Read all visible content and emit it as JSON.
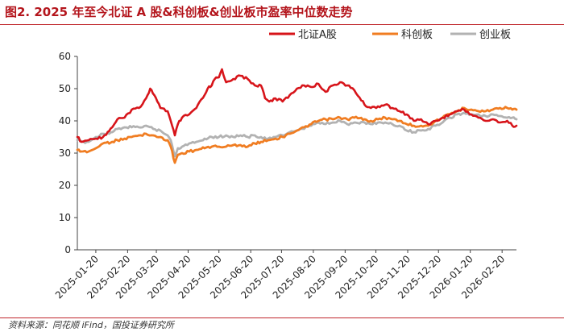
{
  "figure": {
    "title": "图2. 2025 年至今北证 A 股&科创板&创业板市盈率中位数走势",
    "source": "资料来源：同花顺 iFind，国投证券研究所"
  },
  "chart_data": {
    "type": "line",
    "x_ticks": [
      "2025-01-20",
      "2025-02-20",
      "2025-03-20",
      "2025-04-20",
      "2025-05-20",
      "2025-06-20",
      "2025-07-20",
      "2025-08-20",
      "2025-09-20",
      "2025-10-20",
      "2025-11-20",
      "2025-12-20",
      "2026-01-20",
      "2026-02-20"
    ],
    "x_range": [
      "2025-01-02",
      "2026-03-06"
    ],
    "ylim": [
      0,
      60
    ],
    "yticks": [
      0,
      10,
      20,
      30,
      40,
      50,
      60
    ],
    "legend_position": "top-right",
    "grid": false,
    "series": [
      {
        "name": "北证A股",
        "color": "#d7141a",
        "points": [
          [
            "2025-01-02",
            35
          ],
          [
            "2025-01-06",
            33.5
          ],
          [
            "2025-01-13",
            34
          ],
          [
            "2025-01-20",
            34.5
          ],
          [
            "2025-01-27",
            35
          ],
          [
            "2025-02-05",
            38
          ],
          [
            "2025-02-10",
            40.5
          ],
          [
            "2025-02-17",
            41
          ],
          [
            "2025-02-24",
            43.5
          ],
          [
            "2025-03-03",
            44
          ],
          [
            "2025-03-10",
            47
          ],
          [
            "2025-03-14",
            50
          ],
          [
            "2025-03-18",
            48
          ],
          [
            "2025-03-24",
            44
          ],
          [
            "2025-03-31",
            43
          ],
          [
            "2025-04-03",
            40
          ],
          [
            "2025-04-07",
            35.5
          ],
          [
            "2025-04-10",
            39
          ],
          [
            "2025-04-14",
            41
          ],
          [
            "2025-04-21",
            42
          ],
          [
            "2025-04-28",
            44
          ],
          [
            "2025-05-06",
            48
          ],
          [
            "2025-05-09",
            50
          ],
          [
            "2025-05-13",
            51
          ],
          [
            "2025-05-16",
            53
          ],
          [
            "2025-05-20",
            53.5
          ],
          [
            "2025-05-23",
            56
          ],
          [
            "2025-05-27",
            52
          ],
          [
            "2025-06-03",
            53
          ],
          [
            "2025-06-10",
            54
          ],
          [
            "2025-06-17",
            53
          ],
          [
            "2025-06-24",
            51
          ],
          [
            "2025-06-30",
            51
          ],
          [
            "2025-07-04",
            47
          ],
          [
            "2025-07-08",
            46
          ],
          [
            "2025-07-14",
            47
          ],
          [
            "2025-07-21",
            46
          ],
          [
            "2025-07-28",
            48
          ],
          [
            "2025-08-04",
            50
          ],
          [
            "2025-08-11",
            51
          ],
          [
            "2025-08-18",
            50.5
          ],
          [
            "2025-08-25",
            51.5
          ],
          [
            "2025-09-01",
            49
          ],
          [
            "2025-09-08",
            51
          ],
          [
            "2025-09-15",
            52
          ],
          [
            "2025-09-22",
            51
          ],
          [
            "2025-09-29",
            49.5
          ],
          [
            "2025-10-09",
            45
          ],
          [
            "2025-10-15",
            44
          ],
          [
            "2025-10-22",
            44.5
          ],
          [
            "2025-10-29",
            45
          ],
          [
            "2025-11-05",
            44
          ],
          [
            "2025-11-12",
            43
          ],
          [
            "2025-11-19",
            42
          ],
          [
            "2025-11-26",
            40
          ],
          [
            "2025-12-03",
            40.5
          ],
          [
            "2025-12-10",
            39
          ],
          [
            "2025-12-17",
            40
          ],
          [
            "2025-12-24",
            41
          ],
          [
            "2025-12-31",
            42
          ],
          [
            "2026-01-07",
            43
          ],
          [
            "2026-01-14",
            43.5
          ],
          [
            "2026-01-21",
            42
          ],
          [
            "2026-01-28",
            41
          ],
          [
            "2026-02-04",
            40
          ],
          [
            "2026-02-11",
            40.5
          ],
          [
            "2026-02-18",
            39.5
          ],
          [
            "2026-02-25",
            40
          ],
          [
            "2026-03-02",
            38.5
          ],
          [
            "2026-03-06",
            38.5
          ]
        ]
      },
      {
        "name": "科创板",
        "color": "#f07d22",
        "points": [
          [
            "2025-01-02",
            31
          ],
          [
            "2025-01-06",
            30.5
          ],
          [
            "2025-01-13",
            30.5
          ],
          [
            "2025-01-20",
            31.5
          ],
          [
            "2025-01-27",
            33
          ],
          [
            "2025-02-05",
            33.5
          ],
          [
            "2025-02-10",
            34
          ],
          [
            "2025-02-17",
            34.5
          ],
          [
            "2025-02-24",
            35
          ],
          [
            "2025-03-03",
            35.5
          ],
          [
            "2025-03-10",
            36
          ],
          [
            "2025-03-17",
            35.5
          ],
          [
            "2025-03-24",
            35
          ],
          [
            "2025-03-31",
            34
          ],
          [
            "2025-04-03",
            32
          ],
          [
            "2025-04-07",
            27
          ],
          [
            "2025-04-10",
            29.5
          ],
          [
            "2025-04-14",
            30
          ],
          [
            "2025-04-21",
            30.5
          ],
          [
            "2025-04-28",
            31
          ],
          [
            "2025-05-06",
            31.5
          ],
          [
            "2025-05-13",
            32
          ],
          [
            "2025-05-20",
            32
          ],
          [
            "2025-05-27",
            32
          ],
          [
            "2025-06-03",
            32.5
          ],
          [
            "2025-06-10",
            32.5
          ],
          [
            "2025-06-17",
            32
          ],
          [
            "2025-06-24",
            33
          ],
          [
            "2025-06-30",
            33.5
          ],
          [
            "2025-07-07",
            34
          ],
          [
            "2025-07-14",
            34.5
          ],
          [
            "2025-07-21",
            35
          ],
          [
            "2025-07-28",
            36
          ],
          [
            "2025-08-04",
            37
          ],
          [
            "2025-08-11",
            38
          ],
          [
            "2025-08-18",
            39
          ],
          [
            "2025-08-25",
            40
          ],
          [
            "2025-09-01",
            40.5
          ],
          [
            "2025-09-08",
            40.5
          ],
          [
            "2025-09-15",
            41
          ],
          [
            "2025-09-22",
            40.5
          ],
          [
            "2025-09-29",
            41
          ],
          [
            "2025-10-09",
            40.5
          ],
          [
            "2025-10-15",
            40
          ],
          [
            "2025-10-22",
            40.5
          ],
          [
            "2025-10-29",
            41
          ],
          [
            "2025-11-05",
            40.5
          ],
          [
            "2025-11-12",
            40
          ],
          [
            "2025-11-19",
            39
          ],
          [
            "2025-11-26",
            38.5
          ],
          [
            "2025-12-03",
            38.5
          ],
          [
            "2025-12-10",
            38.5
          ],
          [
            "2025-12-17",
            40
          ],
          [
            "2025-12-24",
            41
          ],
          [
            "2025-12-31",
            42
          ],
          [
            "2026-01-07",
            43
          ],
          [
            "2026-01-14",
            44
          ],
          [
            "2026-01-21",
            43.5
          ],
          [
            "2026-01-28",
            43
          ],
          [
            "2026-02-04",
            43
          ],
          [
            "2026-02-11",
            43.5
          ],
          [
            "2026-02-18",
            44
          ],
          [
            "2026-02-25",
            44
          ],
          [
            "2026-03-02",
            43.5
          ],
          [
            "2026-03-06",
            43.5
          ]
        ]
      },
      {
        "name": "创业板",
        "color": "#b2b2b2",
        "points": [
          [
            "2025-01-02",
            34
          ],
          [
            "2025-01-06",
            33.5
          ],
          [
            "2025-01-13",
            33.5
          ],
          [
            "2025-01-20",
            35
          ],
          [
            "2025-01-27",
            36
          ],
          [
            "2025-02-05",
            36.5
          ],
          [
            "2025-02-10",
            37.5
          ],
          [
            "2025-02-17",
            38
          ],
          [
            "2025-02-24",
            38
          ],
          [
            "2025-03-03",
            38
          ],
          [
            "2025-03-10",
            38.5
          ],
          [
            "2025-03-17",
            37.5
          ],
          [
            "2025-03-24",
            37
          ],
          [
            "2025-03-31",
            35.5
          ],
          [
            "2025-04-03",
            34
          ],
          [
            "2025-04-07",
            29
          ],
          [
            "2025-04-10",
            31.5
          ],
          [
            "2025-04-14",
            32
          ],
          [
            "2025-04-21",
            33
          ],
          [
            "2025-04-28",
            33.5
          ],
          [
            "2025-05-06",
            34.5
          ],
          [
            "2025-05-13",
            35
          ],
          [
            "2025-05-20",
            35
          ],
          [
            "2025-05-27",
            35.5
          ],
          [
            "2025-06-03",
            35
          ],
          [
            "2025-06-10",
            35.5
          ],
          [
            "2025-06-17",
            35
          ],
          [
            "2025-06-24",
            35.5
          ],
          [
            "2025-06-30",
            35
          ],
          [
            "2025-07-07",
            34.5
          ],
          [
            "2025-07-14",
            35
          ],
          [
            "2025-07-21",
            35.5
          ],
          [
            "2025-07-28",
            36.5
          ],
          [
            "2025-08-04",
            37
          ],
          [
            "2025-08-11",
            37.5
          ],
          [
            "2025-08-18",
            38.5
          ],
          [
            "2025-08-25",
            39.5
          ],
          [
            "2025-09-01",
            39
          ],
          [
            "2025-09-08",
            39.5
          ],
          [
            "2025-09-15",
            40
          ],
          [
            "2025-09-22",
            39
          ],
          [
            "2025-09-29",
            39.5
          ],
          [
            "2025-10-09",
            39.5
          ],
          [
            "2025-10-15",
            39
          ],
          [
            "2025-10-22",
            39.5
          ],
          [
            "2025-10-29",
            39.5
          ],
          [
            "2025-11-05",
            39
          ],
          [
            "2025-11-12",
            38.5
          ],
          [
            "2025-11-19",
            37
          ],
          [
            "2025-11-26",
            36.5
          ],
          [
            "2025-12-03",
            37
          ],
          [
            "2025-12-10",
            37.5
          ],
          [
            "2025-12-17",
            38.5
          ],
          [
            "2025-12-24",
            39.5
          ],
          [
            "2025-12-31",
            41
          ],
          [
            "2026-01-07",
            42
          ],
          [
            "2026-01-14",
            42.5
          ],
          [
            "2026-01-21",
            42
          ],
          [
            "2026-01-28",
            42
          ],
          [
            "2026-02-04",
            41.5
          ],
          [
            "2026-02-11",
            42
          ],
          [
            "2026-02-18",
            41.5
          ],
          [
            "2026-02-25",
            41
          ],
          [
            "2026-03-02",
            41
          ],
          [
            "2026-03-06",
            40.5
          ]
        ]
      }
    ]
  }
}
